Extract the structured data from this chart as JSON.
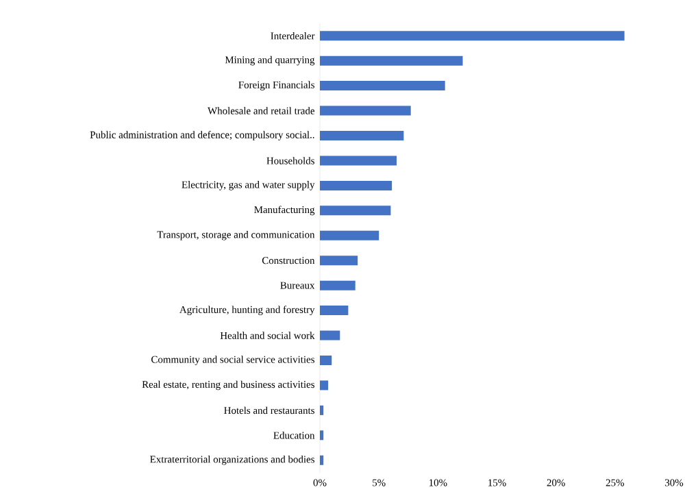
{
  "chart_data": {
    "type": "bar",
    "orientation": "horizontal",
    "color": "#4472c4",
    "categories": [
      "Interdealer",
      "Mining and quarrying",
      "Foreign Financials",
      "Wholesale and retail trade",
      "Public administration and defence; compulsory social..",
      "Households",
      "Electricity, gas and water supply",
      "Manufacturing",
      "Transport, storage and communication",
      "Construction",
      "Bureaux",
      "Agriculture, hunting and forestry",
      "Health and social work",
      "Community and social service activities",
      "Real estate, renting and business activities",
      "Hotels and restaurants",
      "Education",
      "Extraterritorial organizations and bodies"
    ],
    "values": [
      25.8,
      12.1,
      10.6,
      7.7,
      7.1,
      6.5,
      6.1,
      6.0,
      5.0,
      3.2,
      3.0,
      2.4,
      1.7,
      1.0,
      0.7,
      0.3,
      0.3,
      0.3
    ],
    "xlim": [
      0,
      30
    ],
    "xticks": [
      {
        "value": 0,
        "label": "0%"
      },
      {
        "value": 5,
        "label": "5%"
      },
      {
        "value": 10,
        "label": "10%"
      },
      {
        "value": 15,
        "label": "15%"
      },
      {
        "value": 20,
        "label": "20%"
      },
      {
        "value": 25,
        "label": "25%"
      },
      {
        "value": 30,
        "label": "30%"
      }
    ]
  }
}
